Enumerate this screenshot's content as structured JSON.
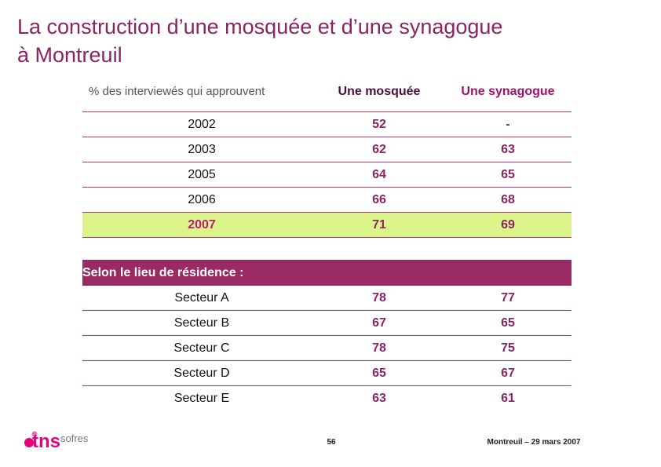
{
  "title": {
    "line1": "La construction d’une mosquée et d’une synagogue",
    "line2": "à Montreuil"
  },
  "header": {
    "question": "% des interviewés qui approuvent",
    "col1": "Une mosquée",
    "col2": "Une synagogue"
  },
  "years": [
    {
      "label": "2002",
      "mosque": "52",
      "synagogue": "-"
    },
    {
      "label": "2003",
      "mosque": "62",
      "synagogue": "63"
    },
    {
      "label": "2005",
      "mosque": "64",
      "synagogue": "65"
    },
    {
      "label": "2006",
      "mosque": "66",
      "synagogue": "68"
    },
    {
      "label": "2007",
      "mosque": "71",
      "synagogue": "69"
    }
  ],
  "residence": {
    "label": "Selon le lieu de résidence :",
    "rows": [
      {
        "label": "Secteur A",
        "mosque": "78",
        "synagogue": "77"
      },
      {
        "label": "Secteur B",
        "mosque": "67",
        "synagogue": "65"
      },
      {
        "label": "Secteur C",
        "mosque": "78",
        "synagogue": "75"
      },
      {
        "label": "Secteur D",
        "mosque": "65",
        "synagogue": "67"
      },
      {
        "label": "Secteur E",
        "mosque": "63",
        "synagogue": "61"
      }
    ]
  },
  "footer": {
    "page": "56",
    "date": "Montreuil – 29 mars 2007",
    "logo_main": "tns",
    "logo_sub": "sofres"
  },
  "colors": {
    "title": "#8b2462",
    "band": "#9a2a63",
    "highlight": "#dcf58a",
    "logo": "#e6007e"
  }
}
